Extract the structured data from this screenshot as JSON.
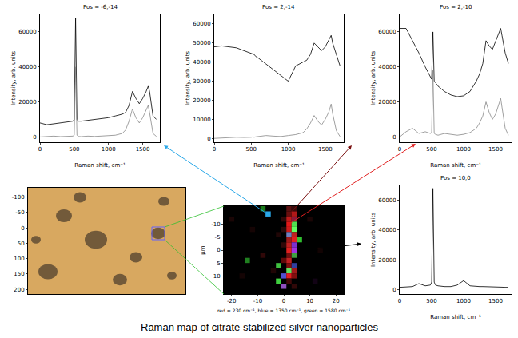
{
  "caption": "Raman map of citrate stabilized silver nanoparticles",
  "chart_data": [
    {
      "type": "line",
      "title": "Pos = -6,-14",
      "xlabel": "Raman shift, cm⁻¹",
      "ylabel": "Intensity, arb. units",
      "x": [
        0,
        100,
        200,
        300,
        400,
        480,
        500,
        520,
        540,
        560,
        600,
        700,
        800,
        900,
        1000,
        1100,
        1200,
        1250,
        1300,
        1350,
        1400,
        1450,
        1500,
        1550,
        1580,
        1600,
        1650,
        1700
      ],
      "series": [
        {
          "color": "#000000",
          "values": [
            8000,
            7000,
            7500,
            8000,
            8500,
            9000,
            10000,
            68000,
            10000,
            9000,
            9000,
            9500,
            10000,
            10500,
            11000,
            12000,
            13000,
            14000,
            18000,
            26000,
            22000,
            19000,
            22000,
            26000,
            29000,
            26000,
            12000,
            10000
          ]
        },
        {
          "color": "#888888",
          "values": [
            0,
            300,
            500,
            200,
            300,
            500,
            1000,
            40000,
            1000,
            300,
            200,
            500,
            300,
            500,
            800,
            1000,
            2000,
            4000,
            9000,
            16000,
            11000,
            8000,
            11000,
            15000,
            18000,
            14000,
            2000,
            300
          ]
        }
      ],
      "xlim": [
        0,
        1750
      ],
      "xticks": [
        0,
        500,
        1000,
        1500
      ],
      "ylim": [
        -3000,
        70000
      ],
      "yticks": [
        0,
        20000,
        40000,
        60000
      ],
      "grid": false
    },
    {
      "type": "line",
      "title": "Pos = 2,-14",
      "xlabel": "Raman shift, cm⁻¹",
      "ylabel": "Intensity, arb. units",
      "x": [
        0,
        100,
        200,
        300,
        400,
        480,
        500,
        520,
        540,
        560,
        600,
        700,
        800,
        900,
        1000,
        1100,
        1200,
        1250,
        1300,
        1350,
        1400,
        1450,
        1500,
        1550,
        1580,
        1600,
        1650,
        1700
      ],
      "series": [
        {
          "color": "#000000",
          "values": [
            48000,
            48500,
            48000,
            47500,
            46000,
            45000,
            44500,
            44500,
            44000,
            43000,
            42000,
            39000,
            36000,
            33000,
            30000,
            38000,
            40000,
            41000,
            44000,
            50000,
            48000,
            46000,
            48000,
            52000,
            54000,
            50000,
            44000,
            38000
          ]
        },
        {
          "color": "#888888",
          "values": [
            0,
            300,
            500,
            600,
            500,
            400,
            600,
            800,
            600,
            800,
            1000,
            1500,
            1200,
            1000,
            1500,
            2000,
            3000,
            5000,
            8000,
            12000,
            9000,
            7000,
            10000,
            14000,
            18000,
            13000,
            4000,
            1000
          ]
        }
      ],
      "xlim": [
        0,
        1750
      ],
      "xticks": [
        0,
        500,
        1000,
        1500
      ],
      "ylim": [
        -2000,
        65000
      ],
      "yticks": [
        0,
        10000,
        20000,
        30000,
        40000,
        50000,
        60000
      ],
      "grid": false
    },
    {
      "type": "line",
      "title": "Pos = 2,-10",
      "xlabel": "Raman shift, cm⁻¹",
      "ylabel": "Intensity, arb. units",
      "x": [
        0,
        100,
        200,
        300,
        400,
        480,
        500,
        520,
        540,
        560,
        600,
        700,
        800,
        900,
        1000,
        1100,
        1200,
        1250,
        1300,
        1350,
        1400,
        1450,
        1500,
        1550,
        1580,
        1600,
        1650,
        1700
      ],
      "series": [
        {
          "color": "#000000",
          "values": [
            62000,
            62000,
            55000,
            48000,
            40000,
            34000,
            33000,
            60000,
            32000,
            31000,
            29000,
            26000,
            24000,
            23000,
            23500,
            26000,
            32000,
            36000,
            42000,
            55000,
            52000,
            50000,
            55000,
            60000,
            62000,
            58000,
            48000,
            42000
          ]
        },
        {
          "color": "#888888",
          "values": [
            0,
            3000,
            5000,
            2000,
            3000,
            2000,
            2500,
            38000,
            2000,
            1500,
            1000,
            2000,
            1500,
            1000,
            1500,
            2500,
            5000,
            8000,
            12000,
            20000,
            14000,
            10000,
            13000,
            18000,
            22000,
            17000,
            5000,
            1000
          ]
        }
      ],
      "xlim": [
        0,
        1750
      ],
      "xticks": [
        0,
        500,
        1000,
        1500
      ],
      "ylim": [
        -3000,
        70000
      ],
      "yticks": [
        0,
        20000,
        40000,
        60000
      ],
      "grid": false
    },
    {
      "type": "line",
      "title": "Pos = 10,0",
      "xlabel": "Raman shift, cm⁻¹",
      "ylabel": "Intensity, arb. units",
      "x": [
        0,
        100,
        200,
        300,
        400,
        480,
        500,
        520,
        540,
        560,
        600,
        700,
        800,
        900,
        1000,
        1100,
        1200,
        1250,
        1300,
        1350,
        1400,
        1450,
        1500,
        1550,
        1580,
        1600,
        1650,
        1700
      ],
      "series": [
        {
          "color": "#000000",
          "values": [
            1500,
            1800,
            2000,
            4000,
            2500,
            3000,
            5000,
            68000,
            5000,
            3000,
            2500,
            2000,
            2000,
            3000,
            6000,
            2500,
            2000,
            2000,
            2000,
            2000,
            1800,
            1800,
            1800,
            1700,
            1700,
            1600,
            1500,
            1500
          ]
        }
      ],
      "xlim": [
        0,
        1750
      ],
      "xticks": [
        0,
        500,
        1000,
        1500
      ],
      "ylim": [
        -3000,
        70000
      ],
      "yticks": [
        0,
        20000,
        40000,
        60000
      ],
      "grid": false
    },
    {
      "type": "image",
      "color": "#d8a860",
      "ylim": [
        215,
        -130
      ],
      "yticks": [
        -100,
        -50,
        0,
        50,
        100,
        150,
        200
      ],
      "tick_labels": "y"
    },
    {
      "type": "heatmap",
      "title": "red = 230 cm⁻¹, blue = 1350 cm⁻¹, green = 1580 cm⁻¹",
      "ylabel": "µm",
      "xlim": [
        -23,
        23
      ],
      "xticks": [
        -20,
        -10,
        0,
        10,
        20
      ],
      "ylim": [
        17,
        -17
      ],
      "yticks": [
        -10,
        -5,
        0,
        5,
        10
      ],
      "cells": [
        [
          -8,
          -16,
          "#1a7a1a"
        ],
        [
          -6,
          -14,
          "#2aa8e8"
        ],
        [
          2,
          -16,
          "#5a1010"
        ],
        [
          4,
          -16,
          "#3a0a0a"
        ],
        [
          2,
          -14,
          "#6a0f0f"
        ],
        [
          4,
          -14,
          "#b01818"
        ],
        [
          0,
          -12,
          "#300808"
        ],
        [
          2,
          -12,
          "#c01a1a"
        ],
        [
          4,
          -12,
          "#8a1a3a"
        ],
        [
          2,
          -10,
          "#e01818"
        ],
        [
          4,
          -10,
          "#50e050"
        ],
        [
          0,
          -8,
          "#2a0a0a"
        ],
        [
          2,
          -8,
          "#d01a1a"
        ],
        [
          4,
          -8,
          "#60ff60"
        ],
        [
          -2,
          -6,
          "#200606"
        ],
        [
          2,
          -6,
          "#7080c0"
        ],
        [
          4,
          -6,
          "#c02020"
        ],
        [
          2,
          -4,
          "#a01a1a"
        ],
        [
          4,
          -4,
          "#e02020"
        ],
        [
          6,
          -4,
          "#30c030"
        ],
        [
          0,
          -2,
          "#300808"
        ],
        [
          2,
          -2,
          "#c02020"
        ],
        [
          4,
          -2,
          "#7a30d0"
        ],
        [
          2,
          0,
          "#e02020"
        ],
        [
          4,
          0,
          "#a030e0"
        ],
        [
          -8,
          2,
          "#300808"
        ],
        [
          2,
          2,
          "#701010"
        ],
        [
          4,
          2,
          "#40a040"
        ],
        [
          -14,
          4,
          "#208020"
        ],
        [
          0,
          4,
          "#600a0a"
        ],
        [
          2,
          4,
          "#c02020"
        ],
        [
          -2,
          6,
          "#40c040"
        ],
        [
          2,
          6,
          "#800f0f"
        ],
        [
          4,
          6,
          "#3040a0"
        ],
        [
          -4,
          8,
          "#200505"
        ],
        [
          2,
          8,
          "#60e060"
        ],
        [
          4,
          8,
          "#a01a1a"
        ],
        [
          0,
          10,
          "#5050d0"
        ],
        [
          2,
          10,
          "#e02020"
        ],
        [
          4,
          10,
          "#800f0f"
        ],
        [
          -2,
          12,
          "#40d040"
        ],
        [
          2,
          12,
          "#400808"
        ],
        [
          0,
          14,
          "#9050c0"
        ],
        [
          4,
          14,
          "#300808"
        ],
        [
          -20,
          -12,
          "#1a0505"
        ],
        [
          -12,
          -8,
          "#150404"
        ],
        [
          10,
          -12,
          "#1a0505"
        ],
        [
          14,
          0,
          "#120303"
        ],
        [
          -16,
          10,
          "#140404"
        ],
        [
          12,
          12,
          "#120315"
        ]
      ]
    }
  ]
}
